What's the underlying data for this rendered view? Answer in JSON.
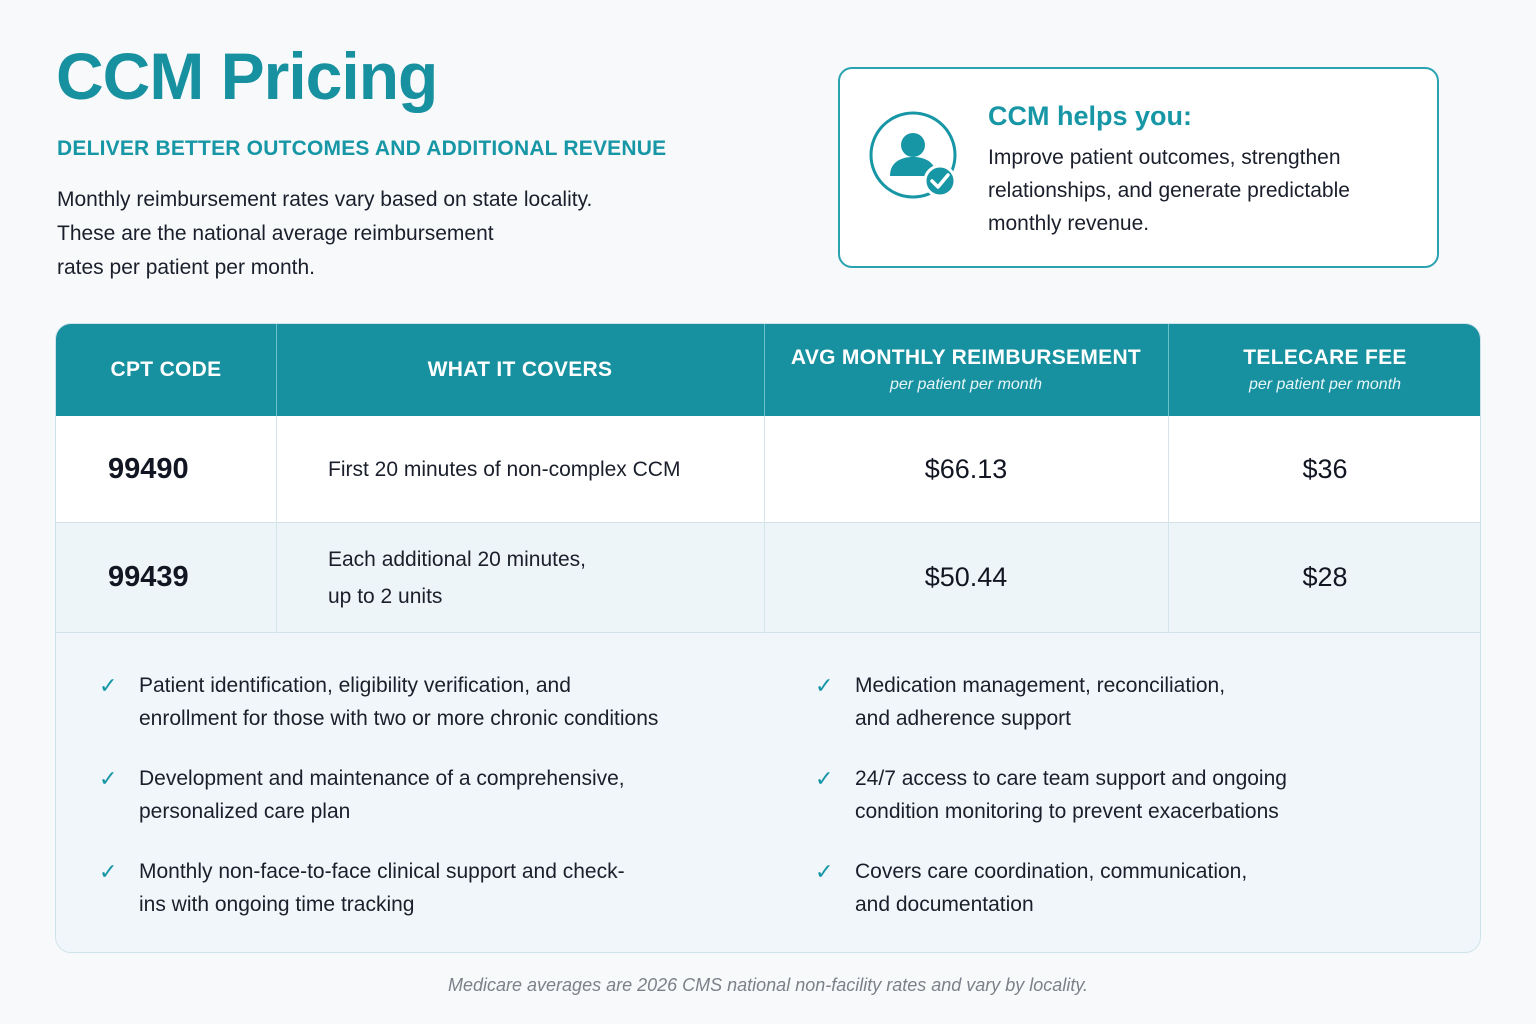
{
  "header": {
    "title": "CCM Pricing",
    "subtitle": "DELIVER BETTER OUTCOMES AND ADDITIONAL REVENUE",
    "intro_lines": [
      "Monthly reimbursement rates vary based on state locality.",
      "These are the national average reimbursement",
      "rates per patient per month."
    ]
  },
  "helps_card": {
    "icon": "user-check-icon",
    "title": "CCM helps you:",
    "text": "Improve patient outcomes, strengthen relationships, and generate predictable monthly revenue."
  },
  "table": {
    "columns": [
      {
        "label": "CPT CODE",
        "sub": ""
      },
      {
        "label": "WHAT IT COVERS",
        "sub": ""
      },
      {
        "label": "AVG MONTHLY REIMBURSEMENT",
        "sub": "per patient per month"
      },
      {
        "label": "TELECARE FEE",
        "sub": "per patient per month"
      }
    ],
    "rows": [
      {
        "code": "99490",
        "covers": [
          "First 20 minutes of non-complex CCM"
        ],
        "reimbursement": "$66.13",
        "fee": "$36"
      },
      {
        "code": "99439",
        "covers": [
          "Each additional 20 minutes,",
          "up to 2 units"
        ],
        "reimbursement": "$50.44",
        "fee": "$28"
      }
    ]
  },
  "features": {
    "check_icon": "checkmark-icon",
    "left": [
      [
        "Patient identification, eligibility verification, and",
        "enrollment for those with two or more chronic conditions"
      ],
      [
        "Development and maintenance of a comprehensive,",
        "personalized care plan"
      ],
      [
        "Monthly non-face-to-face clinical support and check-",
        "ins with ongoing time tracking"
      ]
    ],
    "right": [
      [
        "Medication management, reconciliation,",
        "and adherence support"
      ],
      [
        "24/7 access to care team support and ongoing",
        "condition monitoring to prevent exacerbations"
      ],
      [
        "Covers care coordination, communication,",
        "and documentation"
      ]
    ]
  },
  "footnote": "Medicare averages are 2026 CMS national non-facility rates and vary by locality.",
  "colors": {
    "brand": "#17909f",
    "accent": "#1796a6",
    "header_bg": "#17909f",
    "row_alt": "#eef5f9"
  }
}
